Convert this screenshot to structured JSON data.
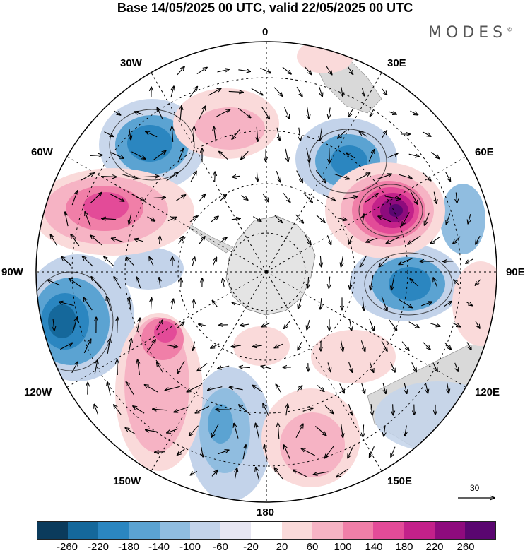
{
  "title": "Base 14/05/2025 00 UTC, valid 22/05/2025 00 UTC",
  "brand": "MODES",
  "brand_mark": "©",
  "longitude_labels": {
    "n0": "0",
    "n30e": "30E",
    "n60e": "60E",
    "n90e": "90E",
    "n120e": "120E",
    "n150e": "150E",
    "n180": "180",
    "n150w": "150W",
    "n120w": "120W",
    "n90w": "90W",
    "n60w": "60W",
    "n30w": "30W"
  },
  "reference_vector": "30",
  "colorbar": {
    "colors": [
      "#0b3b5c",
      "#15689b",
      "#2b86c0",
      "#5ba3d2",
      "#90bde0",
      "#c3d3ea",
      "#e7e6f2",
      "#ffffff",
      "#fadada",
      "#f6b3c4",
      "#f07fa8",
      "#e34b98",
      "#c3218a",
      "#8e0b7d",
      "#5a0670"
    ],
    "tick_labels": {
      "t1": "-260",
      "t2": "-220",
      "t3": "-180",
      "t4": "-140",
      "t5": "-100",
      "t6": "-60",
      "t7": "-20",
      "t8": "20",
      "t9": "60",
      "t10": "100",
      "t11": "140",
      "t12": "180",
      "t13": "220",
      "t14": "260"
    }
  }
}
